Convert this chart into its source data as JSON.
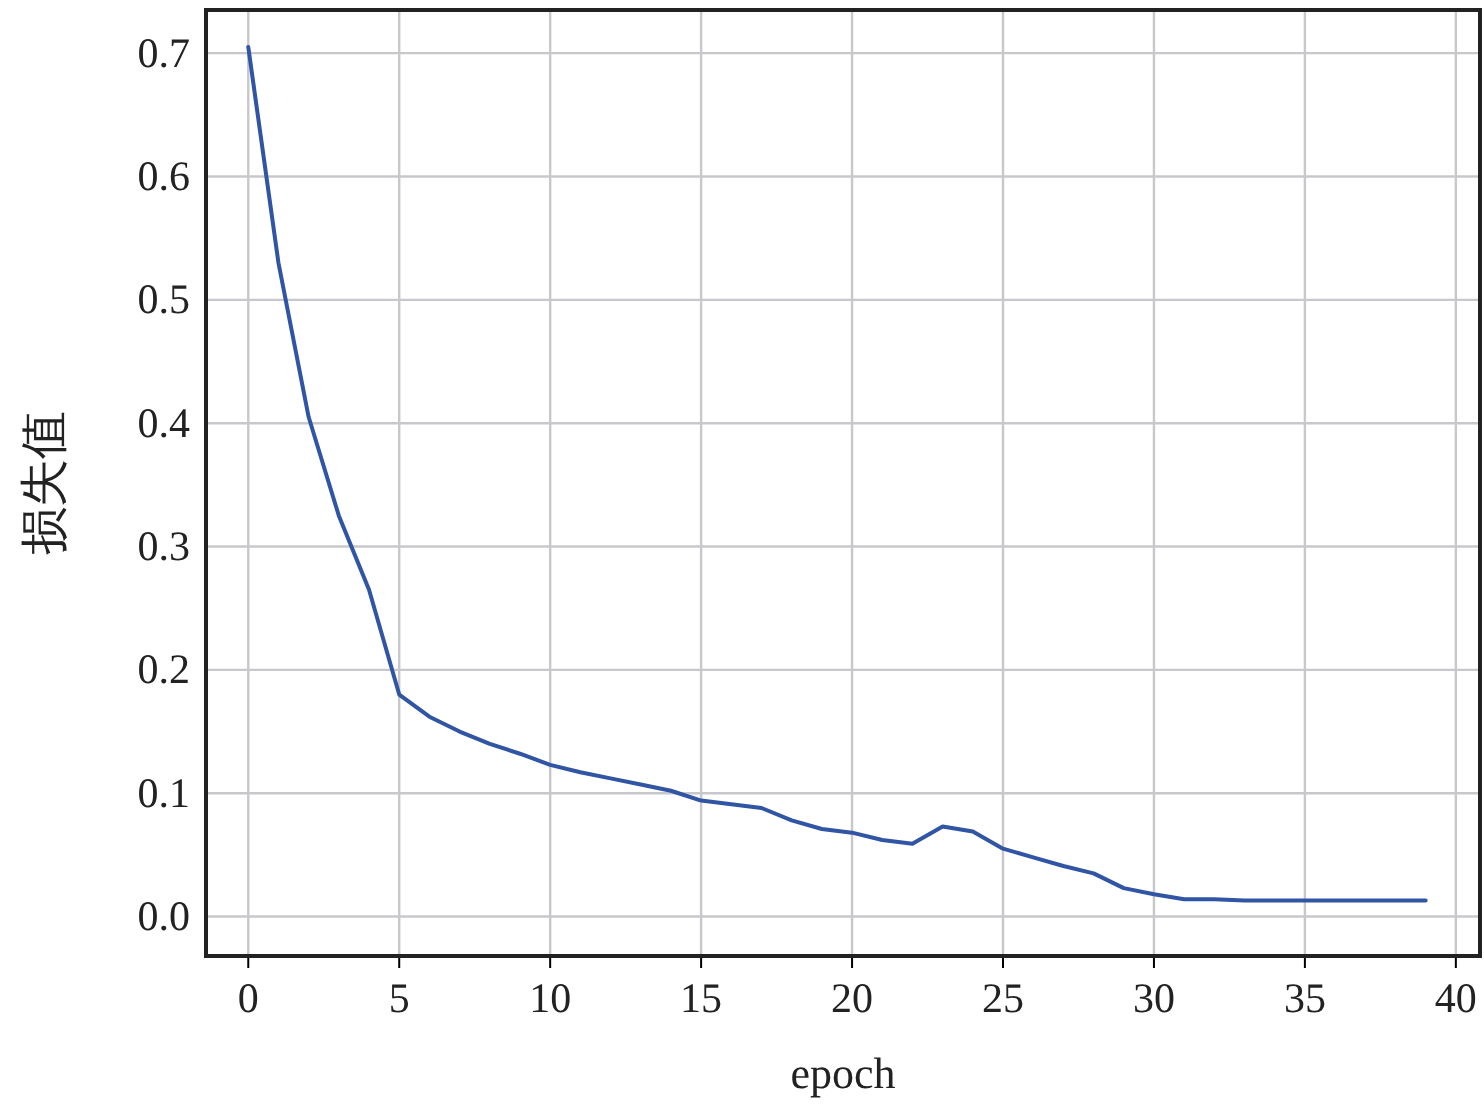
{
  "chart_data": {
    "type": "line",
    "xlabel": "epoch",
    "ylabel": "损失值",
    "x": [
      0,
      1,
      2,
      3,
      4,
      5,
      6,
      7,
      8,
      9,
      10,
      11,
      12,
      13,
      14,
      15,
      16,
      17,
      18,
      19,
      20,
      21,
      22,
      23,
      24,
      25,
      26,
      27,
      28,
      29,
      30,
      31,
      32,
      33,
      34,
      35,
      36,
      37,
      38,
      39
    ],
    "series": [
      {
        "color": "#2f55a4",
        "values": [
          0.705,
          0.53,
          0.405,
          0.325,
          0.265,
          0.18,
          0.162,
          0.15,
          0.14,
          0.132,
          0.123,
          0.117,
          0.112,
          0.107,
          0.102,
          0.094,
          0.091,
          0.088,
          0.078,
          0.071,
          0.068,
          0.062,
          0.059,
          0.073,
          0.069,
          0.055,
          0.048,
          0.041,
          0.035,
          0.023,
          0.018,
          0.014,
          0.014,
          0.013,
          0.013,
          0.013,
          0.013,
          0.013,
          0.013,
          0.013
        ]
      }
    ],
    "xlim": [
      -1.4,
      40.8
    ],
    "ylim": [
      -0.032,
      0.735
    ],
    "xticks": [
      0,
      5,
      10,
      15,
      20,
      25,
      30,
      35,
      40
    ],
    "yticks": [
      {
        "value": 0,
        "label": "0.0"
      },
      0.1,
      0.2,
      0.3,
      0.4,
      0.5,
      0.6,
      0.7
    ],
    "grid": true,
    "marker": "none",
    "line_style": "solid"
  }
}
